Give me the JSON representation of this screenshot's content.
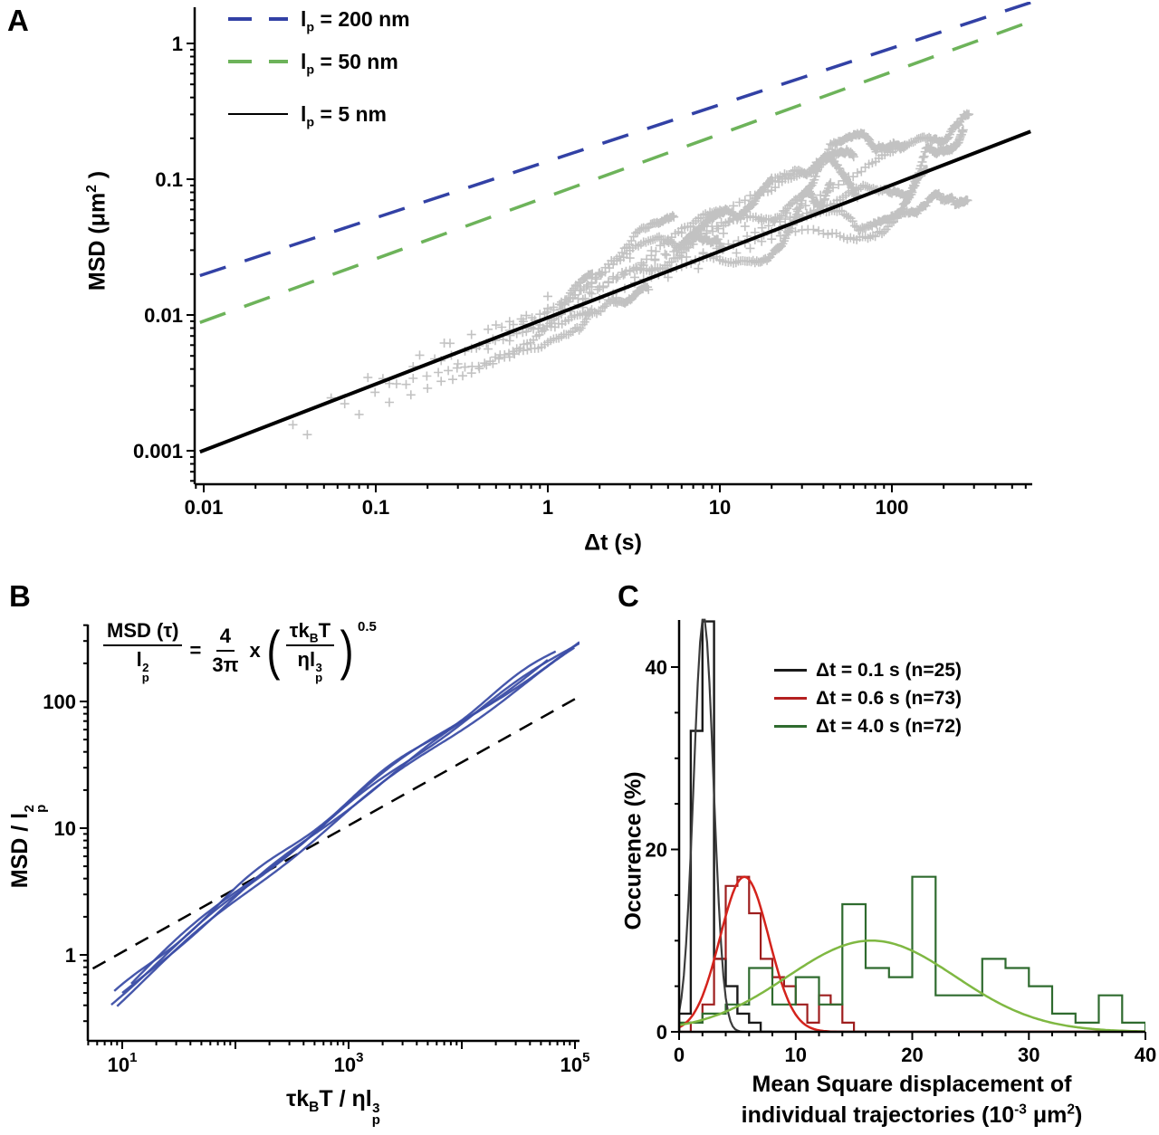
{
  "panels": {
    "a": {
      "letter": "A"
    },
    "b": {
      "letter": "B"
    },
    "c": {
      "letter": "C"
    }
  },
  "chart_data": [
    {
      "id": "msd-vs-lagtime",
      "type": "scatter",
      "x_scale": "log",
      "y_scale": "log",
      "xlim": [
        0.0089,
        650
      ],
      "ylim": [
        0.00057,
        1.9
      ],
      "xlabel": "Δt (s)",
      "ylabel": {
        "pre": "MSD (μm",
        "sup": "2",
        "post": " )"
      },
      "x_tick_values": [
        0.01,
        0.1,
        1,
        10,
        100
      ],
      "x_tick_labels": [
        "0.01",
        "0.1",
        "1",
        "10",
        "100"
      ],
      "y_tick_values": [
        0.001,
        0.01,
        0.1,
        1
      ],
      "y_tick_labels": [
        "0.001",
        "0.01",
        "0.1",
        "1"
      ],
      "legend": [
        {
          "pre": "l",
          "sub": "p",
          "post": " = 200 nm",
          "color": "#3241a5",
          "dash": "dashed"
        },
        {
          "pre": "l",
          "sub": "p",
          "post": " = 50 nm",
          "color": "#6db35a",
          "dash": "dashed"
        },
        {
          "pre": "l",
          "sub": "p",
          "post": " = 5 nm",
          "color": "#000000",
          "dash": "solid"
        }
      ],
      "model_lines": [
        {
          "name": "lp-200nm",
          "color": "#3241a5",
          "dash": [
            30,
            22
          ],
          "width": 3.5,
          "points": [
            [
              0.0095,
              0.0195
            ],
            [
              640,
              2.0
            ]
          ]
        },
        {
          "name": "lp-50nm",
          "color": "#6db35a",
          "dash": [
            30,
            22
          ],
          "width": 3.5,
          "points": [
            [
              0.0095,
              0.0088
            ],
            [
              640,
              1.45
            ]
          ]
        },
        {
          "name": "lp-5nm",
          "color": "#000000",
          "dash": null,
          "width": 4.0,
          "points": [
            [
              0.0095,
              0.00098
            ],
            [
              640,
              0.225
            ]
          ]
        }
      ],
      "scatter_series": {
        "marker": "plus",
        "color": "#c2c2c2",
        "marker_half": 5,
        "stroke": 1.6,
        "seed": 11,
        "note": "individual experimental MSD trajectories, MSD ~ amp*sqrt(t) with noise",
        "trajectories": [
          {
            "dt": 0.033,
            "n": 55,
            "amp": 0.0085
          },
          {
            "dt": 0.04,
            "n": 45,
            "amp": 0.0065
          },
          {
            "dt": 0.055,
            "n": 70,
            "amp": 0.0105
          },
          {
            "dt": 0.09,
            "n": 60,
            "amp": 0.0115
          },
          {
            "dt": 0.12,
            "n": 90,
            "amp": 0.009
          },
          {
            "dt": 0.15,
            "n": 70,
            "amp": 0.008
          },
          {
            "dt": 0.25,
            "n": 80,
            "amp": 0.0125
          },
          {
            "dt": 0.4,
            "n": 110,
            "amp": 0.0095
          },
          {
            "dt": 0.6,
            "n": 100,
            "amp": 0.0115
          },
          {
            "dt": 0.7,
            "n": 90,
            "amp": 0.011
          },
          {
            "dt": 1.0,
            "n": 120,
            "amp": 0.0135
          },
          {
            "dt": 1.6,
            "n": 100,
            "amp": 0.0105
          },
          {
            "dt": 2.0,
            "n": 130,
            "amp": 0.0115
          },
          {
            "dt": 2.5,
            "n": 110,
            "amp": 0.0085
          },
          {
            "dt": 3.5,
            "n": 80,
            "amp": 0.013
          }
        ]
      }
    },
    {
      "id": "rescaled-msd",
      "type": "line",
      "x_scale": "log",
      "y_scale": "log",
      "xlim": [
        5,
        130000
      ],
      "ylim": [
        0.21,
        405
      ],
      "xlabel": {
        "pre": "τk",
        "sub1": "B",
        "mid": "T / ηl",
        "sup2": "3",
        "sub2": "p"
      },
      "ylabel": {
        "pre": "MSD / l",
        "sup": "2",
        "sub": "p"
      },
      "x_tick_base": "10",
      "x_tick_labeled_exponents": [
        "1",
        "3",
        "5"
      ],
      "y_tick_values": [
        1,
        10,
        100
      ],
      "y_tick_labels": [
        "1",
        "10",
        "100"
      ],
      "formula": {
        "lhs_num": "MSD (τ)",
        "lhs_den": {
          "pre": "l",
          "sub": "p",
          "sup": "2"
        },
        "eq": "=",
        "c_num": "4",
        "c_den": "3π",
        "times": "x",
        "paren_open": "(",
        "paren_close": ")",
        "inner_num": {
          "pre": "τk",
          "sub": "B",
          "post": "T"
        },
        "inner_den": {
          "pre": "ηl",
          "sub": "p",
          "sup": "3"
        },
        "exp": "0.5"
      },
      "dashed_line": {
        "name": "power-law-0.5",
        "color": "#000000",
        "dash": [
          16,
          11
        ],
        "width": 2.5,
        "points": [
          [
            5.5,
            0.78
          ],
          [
            125000,
            117
          ]
        ]
      },
      "curve_color": "#3c4ea6",
      "curve_model": {
        "a": -1.119,
        "b": 0.845,
        "c": -0.0263
      },
      "curves": [
        {
          "scale": 1.0,
          "x0": 8,
          "x1": 120000,
          "wamp": 0.02,
          "wfreq": 4.5,
          "wphase": 0.0
        },
        {
          "scale": 0.9,
          "x0": 9,
          "x1": 100000,
          "wamp": 0.025,
          "wfreq": 3.8,
          "wphase": 1.5
        },
        {
          "scale": 1.1,
          "x0": 8.5,
          "x1": 70000,
          "wamp": 0.03,
          "wfreq": 5.2,
          "wphase": 3.0
        },
        {
          "scale": 0.97,
          "x0": 10,
          "x1": 110000,
          "wamp": 0.02,
          "wfreq": 4.2,
          "wphase": 4.5
        },
        {
          "scale": 1.05,
          "x0": 12,
          "x1": 60000,
          "wamp": 0.035,
          "wfreq": 3.5,
          "wphase": 2.2
        }
      ]
    },
    {
      "id": "msd-histograms",
      "type": "bar",
      "x_scale": "linear",
      "y_scale": "linear",
      "xlim": [
        0,
        40
      ],
      "ylim": [
        0,
        45
      ],
      "xlabel_line1": "Mean Square displacement of",
      "xlabel_line2": {
        "pre": "individual trajectories (10",
        "sup1": "-3",
        "mid": " μm",
        "sup2": "2",
        "post": ")"
      },
      "ylabel": "Occurence (%)",
      "x_tick_values": [
        0,
        10,
        20,
        30,
        40
      ],
      "x_tick_labels": [
        "0",
        "10",
        "20",
        "30",
        "40"
      ],
      "x_minor_step": 2,
      "y_tick_values": [
        0,
        20,
        40
      ],
      "y_tick_labels": [
        "0",
        "20",
        "40"
      ],
      "y_minor_step": 5,
      "legend": [
        {
          "label": "Δt = 0.1 s (n=25)",
          "color": "#1a1a1a"
        },
        {
          "label": "Δt = 0.6 s (n=73)",
          "color": "#b42020"
        },
        {
          "label": "Δt = 4.0 s (n=72)",
          "color": "#2f6b2f"
        }
      ],
      "histograms": [
        {
          "name": "hist-dt-0.1s",
          "color": "#1a1a1a",
          "width": 2.4,
          "bin_width": 1,
          "start": 0,
          "values": [
            2,
            33,
            45,
            8,
            5,
            2,
            1,
            0
          ]
        },
        {
          "name": "hist-dt-0.6s",
          "color": "#9e1e1e",
          "width": 2.2,
          "bin_width": 1,
          "start": 0,
          "values": [
            0,
            1,
            3,
            8,
            16,
            17,
            13,
            8,
            6,
            5,
            3,
            1,
            4,
            3,
            1,
            0
          ]
        },
        {
          "name": "hist-dt-4.0s",
          "color": "#2f6b2f",
          "width": 2.2,
          "bin_width": 2,
          "start": 0,
          "values": [
            1,
            2,
            3,
            7,
            3,
            6,
            3,
            14,
            7,
            6,
            17,
            4,
            4,
            8,
            7,
            5,
            2,
            1,
            4,
            1
          ]
        }
      ],
      "fit_curves": [
        {
          "name": "gauss-dt-0.1s",
          "color": "#3c3c3c",
          "width": 2.2,
          "amp": 45.5,
          "mean": 2.1,
          "sigma": 0.85
        },
        {
          "name": "gauss-dt-0.6s",
          "color": "#d4231c",
          "width": 2.5,
          "amp": 17,
          "mean": 5.6,
          "sigma": 2.1
        },
        {
          "name": "gauss-dt-4.0s",
          "color": "#7fb842",
          "width": 2.5,
          "amp": 10,
          "mean": 16.5,
          "sigma": 7.2
        }
      ]
    }
  ]
}
